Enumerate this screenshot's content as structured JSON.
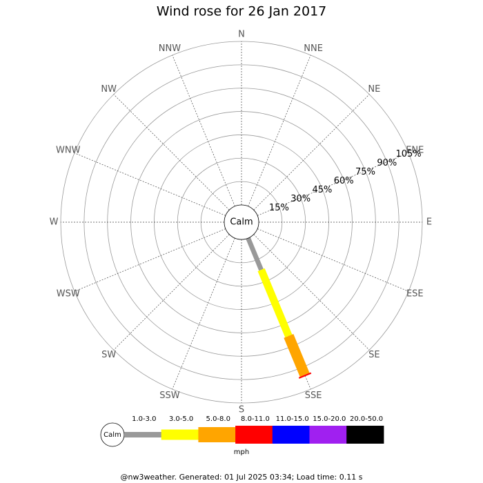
{
  "chart_data": {
    "type": "windrose",
    "title": "Wind rose for 26 Jan 2017",
    "categories": [
      "N",
      "NNE",
      "NE",
      "ENE",
      "E",
      "ESE",
      "SE",
      "SSE",
      "S",
      "SSW",
      "SW",
      "WSW",
      "W",
      "WNW",
      "NW",
      "NNW"
    ],
    "center_label": "Calm",
    "rlim": [
      0,
      105
    ],
    "rticks": [
      {
        "value": 15,
        "label": "15%"
      },
      {
        "value": 30,
        "label": "30%"
      },
      {
        "value": 45,
        "label": "45%"
      },
      {
        "value": 60,
        "label": "60%"
      },
      {
        "value": 75,
        "label": "75%"
      },
      {
        "value": 90,
        "label": "90%"
      },
      {
        "value": 105,
        "label": "105%"
      }
    ],
    "series": [
      {
        "name": "1.0-3.0",
        "color": "#999999",
        "values": [
          0,
          0,
          0,
          0,
          0,
          0,
          0,
          22,
          0,
          0,
          0,
          0,
          0,
          0,
          0,
          0
        ]
      },
      {
        "name": "3.0-5.0",
        "color": "#ffff00",
        "values": [
          0,
          0,
          0,
          0,
          0,
          0,
          0,
          46,
          0,
          0,
          0,
          0,
          0,
          0,
          0,
          0
        ]
      },
      {
        "name": "5.0-8.0",
        "color": "#ffa500",
        "values": [
          0,
          0,
          0,
          0,
          0,
          0,
          0,
          27,
          0,
          0,
          0,
          0,
          0,
          0,
          0,
          0
        ]
      },
      {
        "name": "8.0-11.0",
        "color": "#ff0000",
        "values": [
          0,
          0,
          0,
          0,
          0,
          0,
          0,
          1,
          0,
          0,
          0,
          0,
          0,
          0,
          0,
          0
        ]
      },
      {
        "name": "11.0-15.0",
        "color": "#0000ff",
        "values": [
          0,
          0,
          0,
          0,
          0,
          0,
          0,
          0,
          0,
          0,
          0,
          0,
          0,
          0,
          0,
          0
        ]
      },
      {
        "name": "15.0-20.0",
        "color": "#a020f0",
        "values": [
          0,
          0,
          0,
          0,
          0,
          0,
          0,
          0,
          0,
          0,
          0,
          0,
          0,
          0,
          0,
          0
        ]
      },
      {
        "name": "20.0-50.0",
        "color": "#000000",
        "values": [
          0,
          0,
          0,
          0,
          0,
          0,
          0,
          0,
          0,
          0,
          0,
          0,
          0,
          0,
          0,
          0
        ]
      }
    ],
    "units": "mph",
    "footer": "@nw3weather. Generated: 01 Jul 2025 03:34; Load time: 0.11 s"
  }
}
